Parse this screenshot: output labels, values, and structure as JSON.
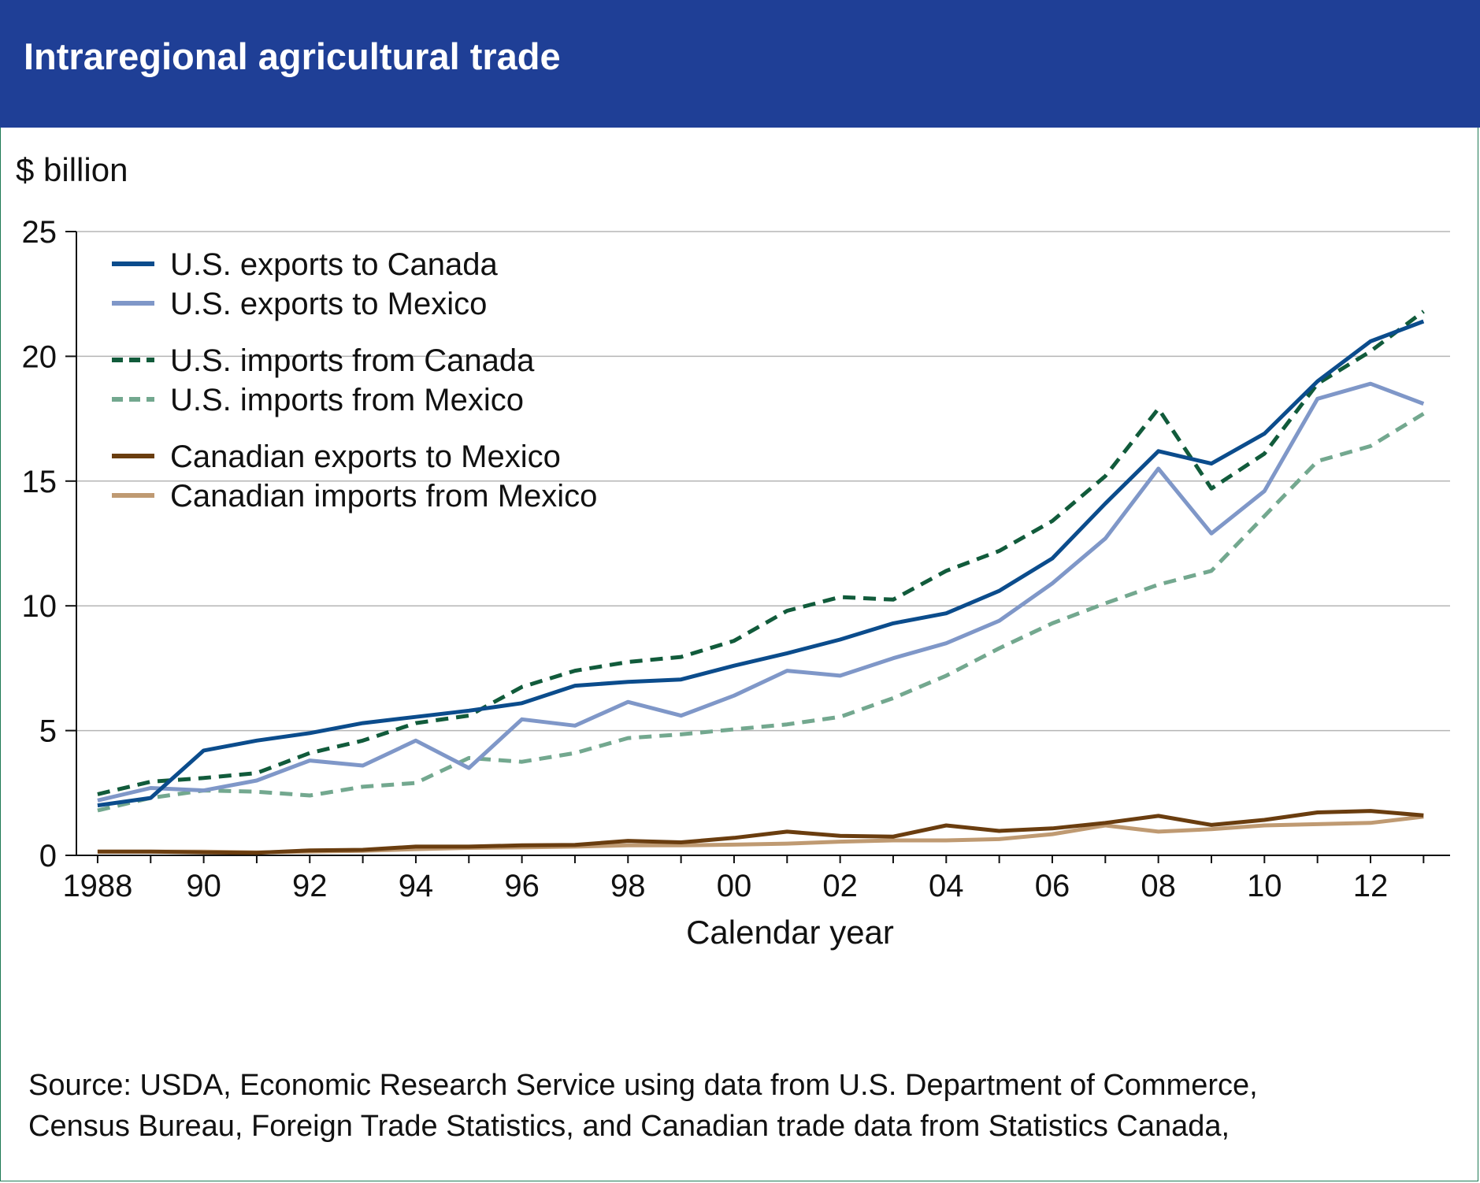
{
  "title": "Intraregional agricultural trade",
  "unit_label": "$ billion",
  "source_lines": [
    "Source: USDA, Economic Research Service using data from U.S. Department of Commerce,",
    "Census Bureau, Foreign Trade Statistics, and Canadian trade data from Statistics Canada,"
  ],
  "colors": {
    "header_bg": "#1f3f96",
    "header_text": "#ffffff",
    "grid": "#b5b5b5"
  },
  "chart_data": {
    "type": "line",
    "title": "Intraregional agricultural trade",
    "xlabel": "Calendar year",
    "ylabel": "$ billion",
    "x": [
      1988,
      1989,
      1990,
      1991,
      1992,
      1993,
      1994,
      1995,
      1996,
      1997,
      1998,
      1999,
      2000,
      2001,
      2002,
      2003,
      2004,
      2005,
      2006,
      2007,
      2008,
      2009,
      2010,
      2011,
      2012,
      2013
    ],
    "x_tick_values": [
      1988,
      1990,
      1992,
      1994,
      1996,
      1998,
      2000,
      2002,
      2004,
      2006,
      2008,
      2010,
      2012
    ],
    "x_tick_labels": [
      "1988",
      "90",
      "92",
      "94",
      "96",
      "98",
      "00",
      "02",
      "04",
      "06",
      "08",
      "10",
      "12"
    ],
    "y_ticks": [
      0,
      5,
      10,
      15,
      20,
      25
    ],
    "ylim": [
      0,
      25
    ],
    "xlim": [
      1987.6,
      2013.5
    ],
    "grid": "horizontal",
    "legend_position": "top-left",
    "series": [
      {
        "name": "U.S. exports to Canada",
        "color": "#0b4c8c",
        "dash": "solid",
        "legend_group": 0,
        "values": [
          2.0,
          2.3,
          4.2,
          4.6,
          4.9,
          5.3,
          5.55,
          5.8,
          6.1,
          6.8,
          6.95,
          7.05,
          7.6,
          8.1,
          8.65,
          9.3,
          9.7,
          10.6,
          11.9,
          14.1,
          16.2,
          15.7,
          16.9,
          19.0,
          20.6,
          21.4
        ]
      },
      {
        "name": "U.S. exports to Mexico",
        "color": "#7f97c8",
        "dash": "solid",
        "legend_group": 0,
        "values": [
          2.2,
          2.7,
          2.6,
          3.0,
          3.8,
          3.6,
          4.6,
          3.5,
          5.45,
          5.2,
          6.15,
          5.6,
          6.4,
          7.4,
          7.2,
          7.9,
          8.5,
          9.4,
          10.9,
          12.7,
          15.5,
          12.9,
          14.6,
          18.3,
          18.9,
          18.1
        ]
      },
      {
        "name": "U.S. imports from Canada",
        "color": "#115b3b",
        "dash": "dashed",
        "legend_group": 1,
        "values": [
          2.45,
          2.95,
          3.1,
          3.3,
          4.1,
          4.6,
          5.3,
          5.6,
          6.75,
          7.4,
          7.75,
          7.95,
          8.6,
          9.8,
          10.35,
          10.25,
          11.4,
          12.2,
          13.4,
          15.2,
          17.9,
          14.7,
          16.1,
          18.9,
          20.2,
          21.8
        ]
      },
      {
        "name": "U.S. imports from Mexico",
        "color": "#73a88f",
        "dash": "dashed",
        "legend_group": 1,
        "values": [
          1.8,
          2.3,
          2.6,
          2.55,
          2.4,
          2.75,
          2.9,
          3.9,
          3.75,
          4.1,
          4.7,
          4.85,
          5.05,
          5.25,
          5.55,
          6.3,
          7.2,
          8.3,
          9.3,
          10.1,
          10.85,
          11.4,
          13.6,
          15.8,
          16.4,
          17.7
        ]
      },
      {
        "name": "Canadian exports to Mexico",
        "color": "#6a3d0f",
        "dash": "solid",
        "legend_group": 2,
        "values": [
          0.15,
          0.15,
          0.12,
          0.1,
          0.2,
          0.22,
          0.35,
          0.35,
          0.4,
          0.42,
          0.58,
          0.52,
          0.7,
          0.95,
          0.78,
          0.75,
          1.2,
          0.98,
          1.08,
          1.3,
          1.58,
          1.22,
          1.42,
          1.72,
          1.78,
          1.6
        ]
      },
      {
        "name": "Canadian imports from Mexico",
        "color": "#bf9a72",
        "dash": "solid",
        "legend_group": 2,
        "values": [
          0.15,
          0.15,
          0.15,
          0.12,
          0.15,
          0.18,
          0.25,
          0.3,
          0.32,
          0.35,
          0.4,
          0.4,
          0.43,
          0.47,
          0.55,
          0.6,
          0.6,
          0.65,
          0.85,
          1.2,
          0.95,
          1.05,
          1.2,
          1.25,
          1.3,
          1.55
        ]
      }
    ]
  }
}
